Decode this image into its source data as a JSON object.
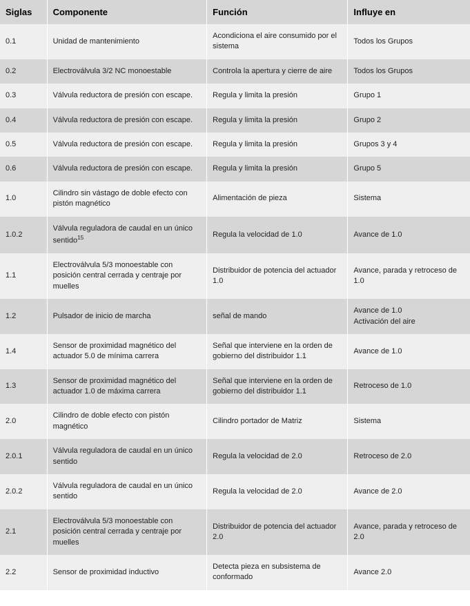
{
  "table": {
    "headers": {
      "siglas": "Siglas",
      "componente": "Componente",
      "funcion": "Función",
      "influye": "Influye en"
    },
    "rows": [
      {
        "siglas": "0.1",
        "componente": "Unidad de mantenimiento",
        "funcion": "Acondiciona el aire consumido por el sistema",
        "influye": "Todos los Grupos"
      },
      {
        "siglas": "0.2",
        "componente": "Electroválvula 3/2 NC monoestable",
        "funcion": "Controla la apertura y cierre de aire",
        "influye": "Todos los Grupos"
      },
      {
        "siglas": "0.3",
        "componente": "Válvula reductora de presión con escape.",
        "funcion": "Regula y limita la presión",
        "influye": "Grupo 1"
      },
      {
        "siglas": "0.4",
        "componente": "Válvula reductora de presión con escape.",
        "funcion": "Regula y limita la presión",
        "influye": "Grupo 2"
      },
      {
        "siglas": "0.5",
        "componente": "Válvula reductora de presión con escape.",
        "funcion": "Regula y limita la presión",
        "influye": "Grupos 3 y 4"
      },
      {
        "siglas": "0.6",
        "componente": "Válvula reductora de presión con escape.",
        "funcion": "Regula y limita la presión",
        "influye": "Grupo  5"
      },
      {
        "siglas": "1.0",
        "componente": "Cilindro sin vástago de doble efecto con pistón magnético",
        "funcion": "Alimentación de pieza",
        "influye": "Sistema"
      },
      {
        "siglas": "1.0.2",
        "componente": "Válvula reguladora de caudal en un único sentido",
        "sup": "15",
        "funcion": "Regula la velocidad de 1.0",
        "influye": "Avance de 1.0"
      },
      {
        "siglas": "1.1",
        "componente": "Electroválvula 5/3 monoestable con posición central cerrada y centraje por muelles",
        "funcion": "Distribuidor de potencia del actuador 1.0",
        "influye": "Avance, parada y retroceso de 1.0"
      },
      {
        "siglas": "1.2",
        "componente": "Pulsador de inicio de marcha",
        "funcion": "señal de mando",
        "influye": "Avance de 1.0\nActivación del aire"
      },
      {
        "siglas": "1.4",
        "componente": "Sensor de proximidad magnético del actuador 5.0 de mínima carrera",
        "funcion": "Señal que interviene en la orden de gobierno del distribuidor 1.1",
        "influye": "Avance de 1.0"
      },
      {
        "siglas": "1.3",
        "componente": "Sensor de proximidad magnético del actuador 1.0 de máxima carrera",
        "funcion": "Señal que interviene en la orden de gobierno del distribuidor 1.1",
        "influye": "Retroceso de 1.0"
      },
      {
        "siglas": "2.0",
        "componente": "Cilindro de doble efecto con pistón magnético",
        "funcion": "Cilindro portador de Matriz",
        "influye": "Sistema"
      },
      {
        "siglas": "2.0.1",
        "componente": "Válvula reguladora de caudal en un único sentido",
        "funcion": "Regula la velocidad de 2.0",
        "influye": "Retroceso de 2.0"
      },
      {
        "siglas": "2.0.2",
        "componente": "Válvula reguladora de caudal en un único sentido",
        "funcion": "Regula la velocidad de 2.0",
        "influye": "Avance de 2.0"
      },
      {
        "siglas": "2.1",
        "componente": "Electroválvula 5/3 monoestable con posición central cerrada y centraje por muelles",
        "funcion": "Distribuidor de potencia del actuador 2.0",
        "influye": "Avance, parada y retroceso de 2.0"
      },
      {
        "siglas": "2.2",
        "componente": "Sensor de proximidad inductivo",
        "funcion": "Detecta pieza en subsistema de conformado",
        "influye": "Avance  2.0"
      }
    ],
    "styling": {
      "header_bg": "#d6d6d6",
      "row_odd_bg": "#efefef",
      "row_even_bg": "#d6d6d6",
      "border_color": "#ffffff",
      "header_fontsize": 13,
      "cell_fontsize": 11,
      "font_family": "Verdana",
      "text_color": "#222222",
      "col_widths": {
        "siglas": "10%",
        "componente": "34%",
        "funcion": "30%",
        "influye": "26%"
      }
    }
  }
}
